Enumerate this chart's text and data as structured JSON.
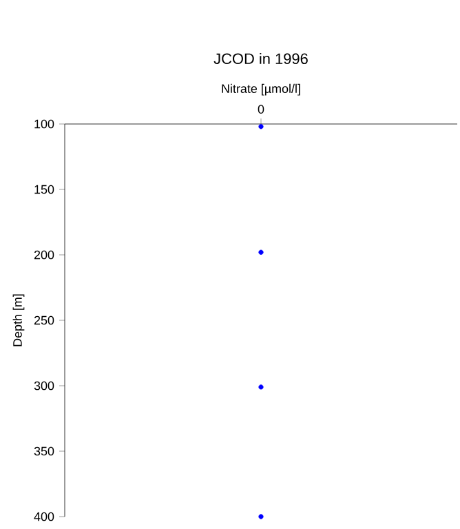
{
  "chart_data": {
    "type": "scatter",
    "title": "JCOD in 1996",
    "xlabel": "Nitrate [µmol/l]",
    "ylabel": "Depth [m]",
    "categories": [
      "0"
    ],
    "series": [
      {
        "x": [
          "0",
          "0",
          "0",
          "0"
        ],
        "values": [
          102,
          198,
          301,
          400
        ],
        "color": "#0000ff"
      }
    ],
    "ylim": [
      400,
      100
    ],
    "yticks": [
      100,
      150,
      200,
      250,
      300,
      350,
      400
    ]
  }
}
